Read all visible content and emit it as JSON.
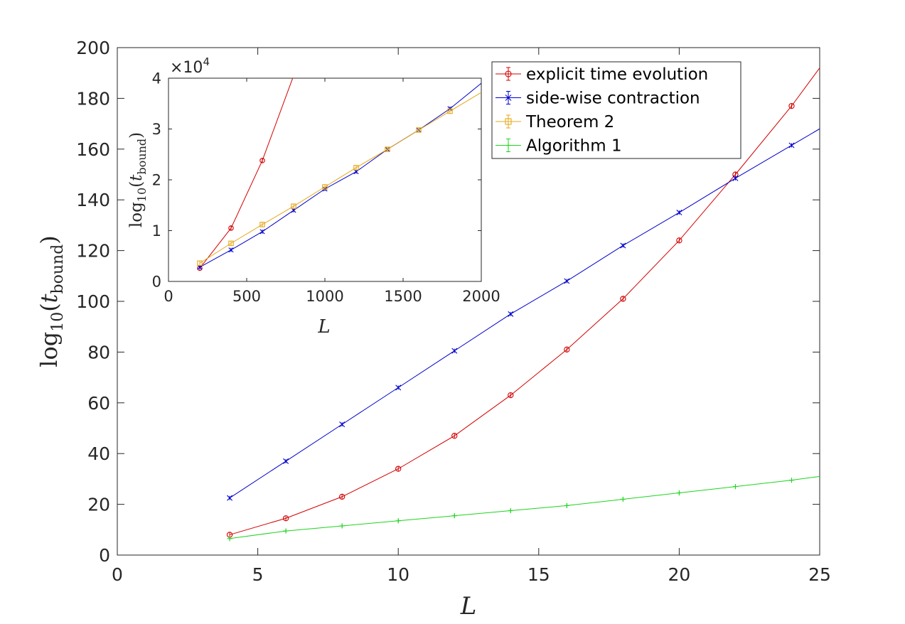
{
  "chart_data": [
    {
      "type": "line",
      "xlabel_symbol": "L",
      "ylabel": {
        "prefix": "log",
        "sub": "10",
        "arg": "t",
        "arg_sub": "bound"
      },
      "xlim": [
        0,
        25
      ],
      "ylim": [
        0,
        200
      ],
      "xticks": [
        "0",
        "5",
        "10",
        "15",
        "20",
        "25"
      ],
      "yticks": [
        "0",
        "20",
        "40",
        "60",
        "80",
        "100",
        "120",
        "140",
        "160",
        "180",
        "200"
      ],
      "grid": false,
      "legend_position": "top-right",
      "series": [
        {
          "name": "explicit time evolution",
          "color": "#d40000",
          "marker": "circle",
          "x": [
            4,
            6,
            8,
            10,
            12,
            14,
            16,
            18,
            20,
            22,
            24,
            25
          ],
          "y": [
            8,
            14.5,
            23,
            34,
            47,
            63,
            81,
            101,
            124,
            150,
            177,
            192
          ]
        },
        {
          "name": "side-wise contraction",
          "color": "#0000cc",
          "marker": "x",
          "x": [
            4,
            6,
            8,
            10,
            12,
            14,
            16,
            18,
            20,
            22,
            24,
            25
          ],
          "y": [
            22.5,
            37,
            51.5,
            66,
            80.5,
            95,
            108,
            122,
            135,
            148.5,
            161.5,
            168
          ]
        },
        {
          "name": "Theorem 2",
          "color": "#e6a817",
          "marker": "square",
          "x": [],
          "y": []
        },
        {
          "name": "Algorithm 1",
          "color": "#1ed41e",
          "marker": "plus",
          "x": [
            4,
            6,
            8,
            10,
            12,
            14,
            16,
            18,
            20,
            22,
            24,
            25
          ],
          "y": [
            6.5,
            9.5,
            11.5,
            13.5,
            15.5,
            17.5,
            19.5,
            22,
            24.5,
            27,
            29.5,
            31
          ]
        }
      ]
    },
    {
      "type": "line",
      "xlabel_symbol": "L",
      "ylabel": {
        "prefix": "log",
        "sub": "10",
        "arg": "t",
        "arg_sub": "bound"
      },
      "multiplier": {
        "base": "×10",
        "exp": "4"
      },
      "xlim": [
        0,
        2000
      ],
      "ylim": [
        0,
        4
      ],
      "xticks": [
        "0",
        "500",
        "1000",
        "1500",
        "2000"
      ],
      "yticks": [
        "0",
        "1",
        "2",
        "3",
        "4"
      ],
      "grid": false,
      "series": [
        {
          "name": "explicit time evolution",
          "color": "#d40000",
          "marker": "circle",
          "x": [
            200,
            400,
            600,
            800
          ],
          "y": [
            0.26,
            1.05,
            2.38,
            4.05
          ]
        },
        {
          "name": "side-wise contraction",
          "color": "#0000cc",
          "marker": "x",
          "x": [
            200,
            400,
            600,
            800,
            1000,
            1200,
            1400,
            1600,
            1800,
            2000
          ],
          "y": [
            0.28,
            0.62,
            0.98,
            1.4,
            1.82,
            2.16,
            2.6,
            2.98,
            3.4,
            3.9
          ]
        },
        {
          "name": "Theorem 2",
          "color": "#e6a817",
          "marker": "square",
          "x": [
            200,
            400,
            600,
            800,
            1000,
            1200,
            1400,
            1600,
            1800,
            2000
          ],
          "y": [
            0.36,
            0.75,
            1.12,
            1.48,
            1.86,
            2.24,
            2.6,
            2.98,
            3.35,
            3.72
          ]
        },
        {
          "name": "Algorithm 1",
          "color": "#1ed41e",
          "marker": "plus",
          "x": [],
          "y": []
        }
      ]
    }
  ]
}
